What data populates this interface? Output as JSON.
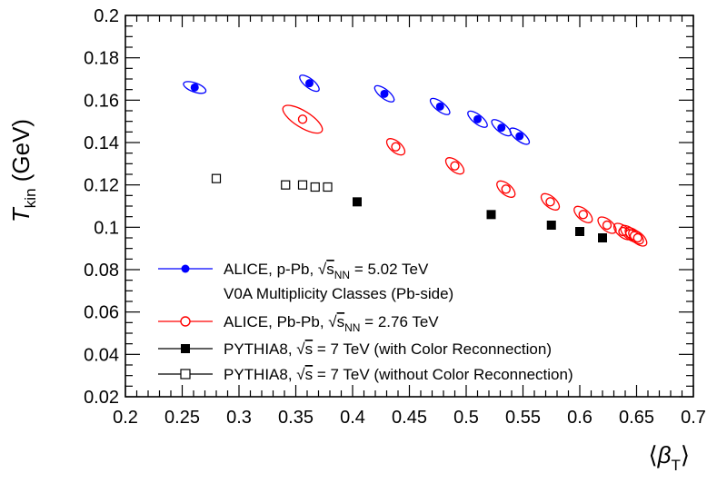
{
  "chart_data": {
    "type": "scatter",
    "xlabel": "⟨β_T⟩",
    "ylabel": "T_kin (GeV)",
    "xlim": [
      0.2,
      0.7
    ],
    "ylim": [
      0.02,
      0.2
    ],
    "x_ticks": [
      "0.2",
      "0.25",
      "0.3",
      "0.35",
      "0.4",
      "0.45",
      "0.5",
      "0.55",
      "0.6",
      "0.65",
      "0.7"
    ],
    "y_ticks": [
      "0.02",
      "0.04",
      "0.06",
      "0.08",
      "0.1",
      "0.12",
      "0.14",
      "0.16",
      "0.18",
      "0.2"
    ],
    "grid": false,
    "legend_position": "bottom-left",
    "series": [
      {
        "name": "ALICE, p-Pb, √s_NN = 5.02 TeV",
        "color": "#0000ff",
        "marker": "filled-circle-with-contour",
        "points": [
          {
            "x": 0.261,
            "y": 0.166
          },
          {
            "x": 0.362,
            "y": 0.168
          },
          {
            "x": 0.428,
            "y": 0.163
          },
          {
            "x": 0.477,
            "y": 0.157
          },
          {
            "x": 0.51,
            "y": 0.151
          },
          {
            "x": 0.531,
            "y": 0.147
          },
          {
            "x": 0.547,
            "y": 0.143
          }
        ]
      },
      {
        "name": "ALICE, Pb-Pb, √s_NN = 2.76 TeV",
        "color": "#ff0000",
        "marker": "open-circle-with-contour",
        "points": [
          {
            "x": 0.356,
            "y": 0.151
          },
          {
            "x": 0.438,
            "y": 0.138
          },
          {
            "x": 0.49,
            "y": 0.129
          },
          {
            "x": 0.535,
            "y": 0.118
          },
          {
            "x": 0.574,
            "y": 0.112
          },
          {
            "x": 0.603,
            "y": 0.106
          },
          {
            "x": 0.624,
            "y": 0.101
          },
          {
            "x": 0.638,
            "y": 0.098
          },
          {
            "x": 0.644,
            "y": 0.097
          },
          {
            "x": 0.648,
            "y": 0.096
          },
          {
            "x": 0.651,
            "y": 0.095
          }
        ]
      },
      {
        "name": "PYTHIA8, √s = 7 TeV (with Color Reconnection)",
        "color": "#000000",
        "marker": "filled-square",
        "points": [
          {
            "x": 0.404,
            "y": 0.112
          },
          {
            "x": 0.522,
            "y": 0.106
          },
          {
            "x": 0.575,
            "y": 0.101
          },
          {
            "x": 0.6,
            "y": 0.098
          },
          {
            "x": 0.62,
            "y": 0.095
          }
        ]
      },
      {
        "name": "PYTHIA8, √s = 7 TeV (without Color Reconnection)",
        "color": "#000000",
        "marker": "open-square",
        "points": [
          {
            "x": 0.28,
            "y": 0.123
          },
          {
            "x": 0.341,
            "y": 0.12
          },
          {
            "x": 0.356,
            "y": 0.12
          },
          {
            "x": 0.367,
            "y": 0.119
          },
          {
            "x": 0.378,
            "y": 0.119
          }
        ]
      }
    ],
    "legend_note": "V0A Multiplicity Classes (Pb-side)"
  }
}
